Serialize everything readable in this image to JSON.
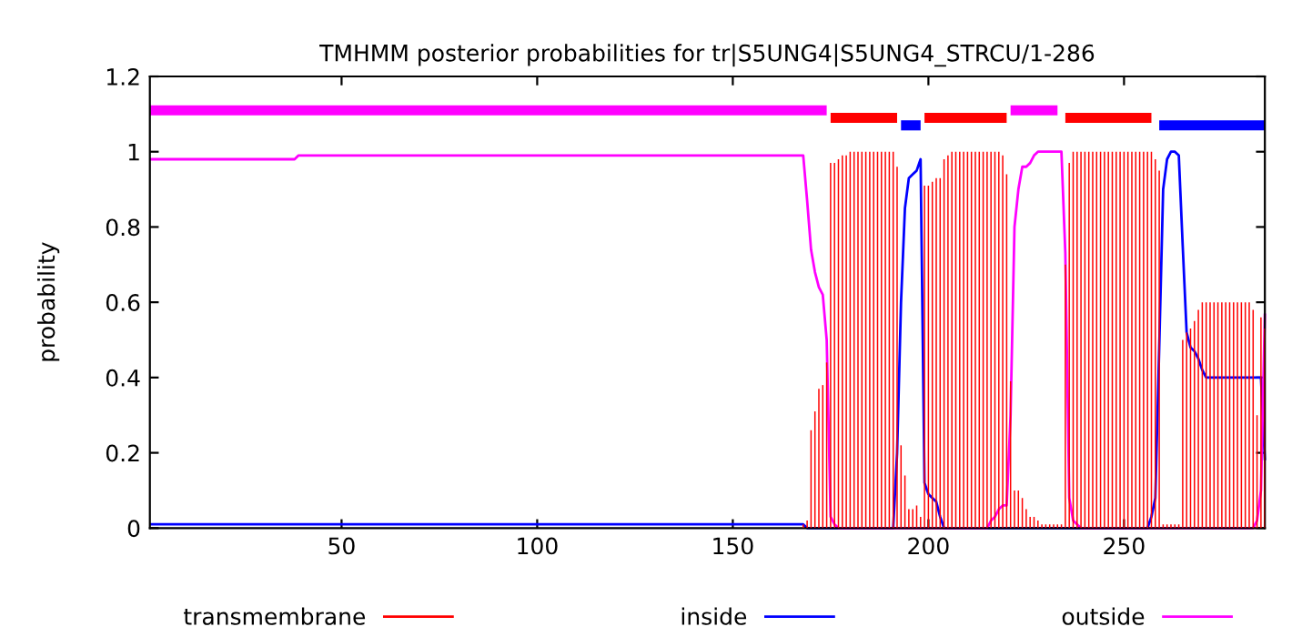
{
  "chart_data": {
    "type": "line",
    "title": "TMHMM posterior probabilities for tr|S5UNG4|S5UNG4_STRCU/1-286",
    "ylabel": "probability",
    "xlim": [
      1,
      286
    ],
    "xticks": [
      50,
      100,
      150,
      200,
      250
    ],
    "ylim": [
      0,
      1.2
    ],
    "yticks": [
      0,
      0.2,
      0.4,
      0.6,
      0.8,
      1,
      1.2
    ],
    "grid": false,
    "legend": "bottom",
    "series": [
      {
        "name": "transmembrane",
        "type": "bar",
        "color": "#ff0000",
        "x": [
          168,
          169,
          170,
          171,
          172,
          173,
          174,
          175,
          176,
          177,
          178,
          179,
          180,
          181,
          182,
          183,
          184,
          185,
          186,
          187,
          188,
          189,
          190,
          191,
          192,
          193,
          194,
          195,
          196,
          197,
          198,
          199,
          200,
          201,
          202,
          203,
          204,
          205,
          206,
          207,
          208,
          209,
          210,
          211,
          212,
          213,
          214,
          215,
          216,
          217,
          218,
          219,
          220,
          221,
          222,
          223,
          224,
          225,
          226,
          227,
          228,
          229,
          230,
          231,
          232,
          233,
          234,
          235,
          236,
          237,
          238,
          239,
          240,
          241,
          242,
          243,
          244,
          245,
          246,
          247,
          248,
          249,
          250,
          251,
          252,
          253,
          254,
          255,
          256,
          257,
          258,
          259,
          260,
          261,
          262,
          263,
          264,
          265,
          266,
          267,
          268,
          269,
          270,
          271,
          272,
          273,
          274,
          275,
          276,
          277,
          278,
          279,
          280,
          281,
          282,
          283,
          284,
          285,
          286
        ],
        "values": [
          0.01,
          0.02,
          0.26,
          0.31,
          0.37,
          0.38,
          0.44,
          0.97,
          0.97,
          0.98,
          0.99,
          0.99,
          1,
          1,
          1,
          1,
          1,
          1,
          1,
          1,
          1,
          1,
          1,
          1,
          0.96,
          0.22,
          0.14,
          0.05,
          0.05,
          0.06,
          0.03,
          0.91,
          0.91,
          0.92,
          0.93,
          0.93,
          0.98,
          0.99,
          1,
          1,
          1,
          1,
          1,
          1,
          1,
          1,
          1,
          1,
          1,
          1,
          1,
          0.99,
          0.94,
          0.39,
          0.1,
          0.1,
          0.08,
          0.05,
          0.03,
          0.03,
          0.02,
          0.01,
          0.01,
          0.01,
          0.01,
          0.01,
          0.01,
          0.7,
          0.97,
          1,
          1,
          1,
          1,
          1,
          1,
          1,
          1,
          1,
          1,
          1,
          1,
          1,
          1,
          1,
          1,
          1,
          1,
          1,
          1,
          1,
          0.98,
          0.95,
          0.01,
          0.01,
          0.01,
          0.01,
          0.01,
          0.5,
          0.52,
          0.53,
          0.55,
          0.58,
          0.6,
          0.6,
          0.6,
          0.6,
          0.6,
          0.6,
          0.6,
          0.6,
          0.6,
          0.6,
          0.6,
          0.6,
          0.6,
          0.58,
          0.3,
          0.56,
          0.53
        ]
      },
      {
        "name": "inside",
        "color": "#0000ff",
        "x": [
          1,
          168,
          169,
          191,
          192,
          193,
          194,
          195,
          196,
          197,
          198,
          199,
          200,
          201,
          202,
          203,
          204,
          256,
          257,
          258,
          259,
          260,
          261,
          262,
          263,
          264,
          265,
          266,
          267,
          268,
          269,
          270,
          271,
          285,
          286
        ],
        "values": [
          0.01,
          0.01,
          0,
          0,
          0.2,
          0.6,
          0.85,
          0.93,
          0.94,
          0.95,
          0.98,
          0.12,
          0.09,
          0.08,
          0.07,
          0.03,
          0,
          0,
          0.03,
          0.08,
          0.48,
          0.9,
          0.98,
          1,
          1,
          0.99,
          0.75,
          0.52,
          0.48,
          0.47,
          0.45,
          0.42,
          0.4,
          0.4,
          0.18
        ]
      },
      {
        "name": "outside",
        "color": "#ff00ff",
        "x": [
          1,
          38,
          39,
          168,
          169,
          170,
          171,
          172,
          173,
          174,
          175,
          176,
          177,
          215,
          216,
          217,
          218,
          219,
          220,
          221,
          222,
          223,
          224,
          225,
          226,
          227,
          228,
          234,
          235,
          236,
          237,
          238,
          239,
          283,
          284,
          285,
          286
        ],
        "values": [
          0.98,
          0.98,
          0.99,
          0.99,
          0.87,
          0.74,
          0.68,
          0.64,
          0.62,
          0.5,
          0.03,
          0.01,
          0,
          0,
          0.02,
          0.03,
          0.05,
          0.06,
          0.06,
          0.3,
          0.8,
          0.9,
          0.96,
          0.96,
          0.97,
          0.99,
          1,
          1,
          0.73,
          0.08,
          0.02,
          0.01,
          0,
          0,
          0.02,
          0.1,
          0.57
        ]
      },
      {
        "color": "#ff00ff",
        "x": [
          1,
          174
        ],
        "values": [
          1.11,
          1.11
        ]
      },
      {
        "color": "#ff0000",
        "x": [
          175,
          192
        ],
        "values": [
          1.09,
          1.09
        ]
      },
      {
        "color": "#0000ff",
        "x": [
          193,
          198
        ],
        "values": [
          1.07,
          1.07
        ]
      },
      {
        "color": "#ff0000",
        "x": [
          199,
          220
        ],
        "values": [
          1.09,
          1.09
        ]
      },
      {
        "color": "#ff00ff",
        "x": [
          221,
          233
        ],
        "values": [
          1.11,
          1.11
        ]
      },
      {
        "color": "#ff0000",
        "x": [
          235,
          257
        ],
        "values": [
          1.09,
          1.09
        ]
      },
      {
        "color": "#0000ff",
        "x": [
          259,
          286
        ],
        "values": [
          1.07,
          1.07
        ]
      }
    ]
  }
}
